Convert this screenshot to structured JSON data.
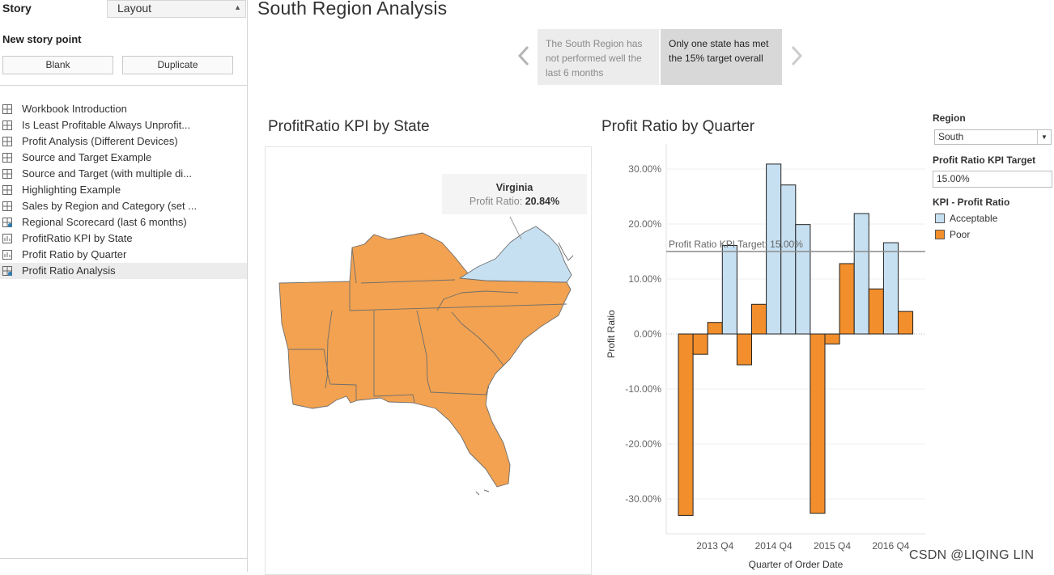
{
  "sidebar": {
    "story_tab": "Story",
    "layout_tab": "Layout",
    "new_story_point": "New story point",
    "blank_button": "Blank",
    "duplicate_button": "Duplicate",
    "sheets": [
      {
        "label": "Workbook Introduction",
        "icon": "dashboard-icon"
      },
      {
        "label": "Is Least Profitable Always Unprofit...",
        "icon": "dashboard-icon"
      },
      {
        "label": "Profit Analysis (Different Devices)",
        "icon": "dashboard-icon"
      },
      {
        "label": "Source and Target Example",
        "icon": "dashboard-icon"
      },
      {
        "label": "Source and Target (with multiple di...",
        "icon": "dashboard-icon"
      },
      {
        "label": "Highlighting Example",
        "icon": "dashboard-icon"
      },
      {
        "label": "Sales by Region and Category (set ...",
        "icon": "dashboard-icon"
      },
      {
        "label": "Regional Scorecard (last 6 months)",
        "icon": "dashboard-filter-icon"
      },
      {
        "label": "ProfitRatio KPI by State",
        "icon": "worksheet-icon"
      },
      {
        "label": "Profit Ratio by Quarter",
        "icon": "worksheet-icon"
      },
      {
        "label": "Profit Ratio Analysis",
        "icon": "dashboard-filter-icon",
        "active": true
      }
    ]
  },
  "story": {
    "title": "South Region Analysis",
    "points": [
      {
        "text": "The South Region has not performed well the last 6 months",
        "active": false
      },
      {
        "text": "Only one state has met the 15% target overall",
        "active": true
      }
    ]
  },
  "map": {
    "title": "ProfitRatio KPI by State",
    "tooltip_state": "Virginia",
    "tooltip_label": "Profit Ratio:",
    "tooltip_value": "20.84%"
  },
  "legend": {
    "region_label": "Region",
    "region_value": "South",
    "target_label": "Profit Ratio KPI Target",
    "target_value": "15.00%",
    "kpi_label": "KPI - Profit Ratio",
    "items": [
      {
        "label": "Acceptable",
        "color": "#c6e0f2"
      },
      {
        "label": "Poor",
        "color": "#f28e2b"
      }
    ]
  },
  "colors": {
    "acceptable": "#c6e0f2",
    "poor": "#f28e2b",
    "map_poor": "#f2a250",
    "map_acceptable": "#c6e0f2"
  },
  "chart_data": {
    "type": "bar",
    "title": "Profit Ratio by Quarter",
    "xlabel": "Quarter of Order Date",
    "ylabel": "Profit Ratio",
    "ylim": [
      -35,
      35
    ],
    "yticks": [
      "30.00%",
      "20.00%",
      "10.00%",
      "0.00%",
      "-10.00%",
      "-20.00%",
      "-30.00%"
    ],
    "ytick_values": [
      30,
      20,
      10,
      0,
      -10,
      -20,
      -30
    ],
    "xtick_labels": [
      "2013 Q4",
      "2014 Q4",
      "2015 Q4",
      "2016 Q4"
    ],
    "xtick_positions": [
      3,
      7,
      11,
      15
    ],
    "reference_line": {
      "label": "Profit Ratio KPI Target: 15.00%",
      "value": 15
    },
    "values": [
      -33,
      -3.7,
      2.1,
      16.1,
      -5.6,
      5.4,
      30.9,
      27.1,
      19.9,
      -32.6,
      -1.8,
      12.8,
      21.9,
      8.2,
      16.6,
      4.1
    ],
    "kpi": [
      "Poor",
      "Poor",
      "Poor",
      "Acceptable",
      "Poor",
      "Poor",
      "Acceptable",
      "Acceptable",
      "Acceptable",
      "Poor",
      "Poor",
      "Poor",
      "Acceptable",
      "Poor",
      "Acceptable",
      "Poor"
    ]
  },
  "watermark": "CSDN @LIQING LIN"
}
